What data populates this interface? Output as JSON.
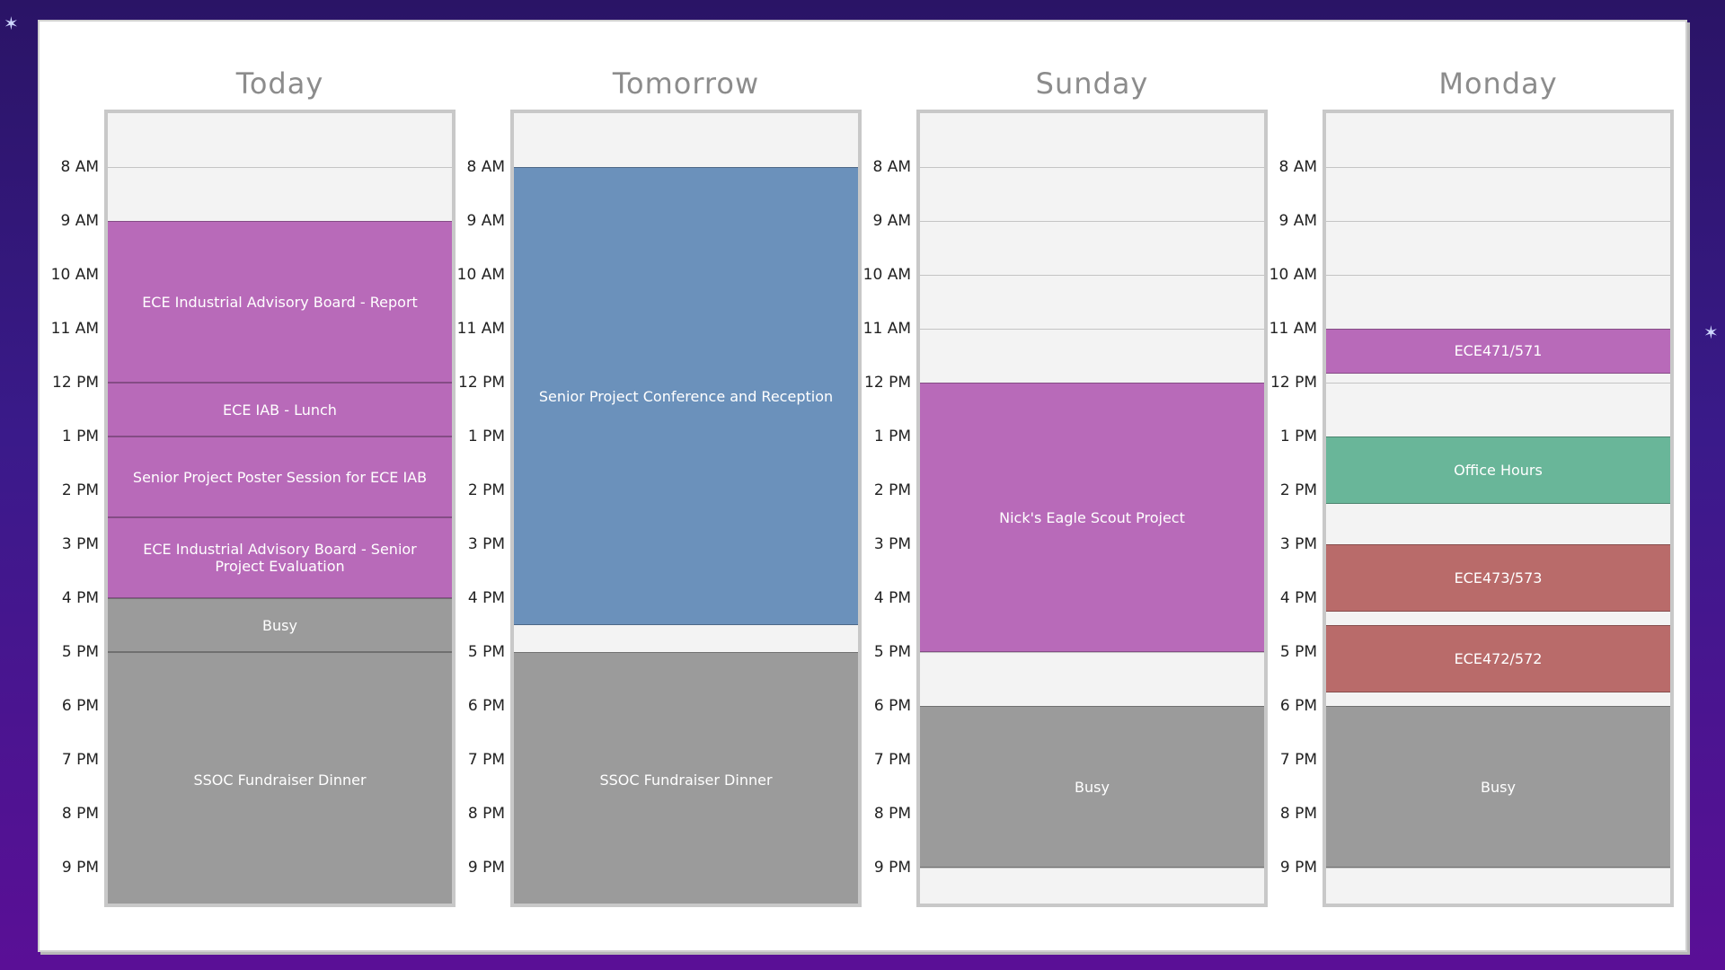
{
  "hours": [
    "8 AM",
    "9 AM",
    "10 AM",
    "11 AM",
    "12 PM",
    "1 PM",
    "2 PM",
    "3 PM",
    "4 PM",
    "5 PM",
    "6 PM",
    "7 PM",
    "8 PM",
    "9 PM"
  ],
  "colors": {
    "purple": "#b86ab9",
    "blue": "#6b91bb",
    "gray": "#9b9b9b",
    "green": "#69b699",
    "red": "#b96b6a"
  },
  "days": [
    {
      "title": "Today",
      "events": [
        {
          "title": "ECE Industrial Advisory Board - Report",
          "start": 9,
          "end": 12,
          "color": "purple"
        },
        {
          "title": "ECE IAB - Lunch",
          "start": 12,
          "end": 13,
          "color": "purple"
        },
        {
          "title": "Senior Project Poster Session for ECE IAB",
          "start": 13,
          "end": 14.5,
          "color": "purple"
        },
        {
          "title": "ECE Industrial Advisory Board - Senior Project Evaluation",
          "start": 14.5,
          "end": 16,
          "color": "purple"
        },
        {
          "title": "Busy",
          "start": 16,
          "end": 17,
          "color": "gray"
        },
        {
          "title": "SSOC Fundraiser Dinner",
          "start": 17,
          "end": 21.75,
          "color": "gray"
        }
      ]
    },
    {
      "title": "Tomorrow",
      "events": [
        {
          "title": "Senior Project Conference and Reception",
          "start": 8,
          "end": 16.5,
          "color": "blue"
        },
        {
          "title": "SSOC Fundraiser Dinner",
          "start": 17,
          "end": 21.75,
          "color": "gray"
        }
      ]
    },
    {
      "title": "Sunday",
      "events": [
        {
          "title": "Nick's Eagle Scout Project",
          "start": 12,
          "end": 17,
          "color": "purple"
        },
        {
          "title": "Busy",
          "start": 18,
          "end": 21,
          "color": "gray"
        }
      ]
    },
    {
      "title": "Monday",
      "events": [
        {
          "title": "ECE471/571",
          "start": 11,
          "end": 11.833,
          "color": "purple"
        },
        {
          "title": "Office Hours",
          "start": 13,
          "end": 14.25,
          "color": "green"
        },
        {
          "title": "ECE473/573",
          "start": 15,
          "end": 16.25,
          "color": "red"
        },
        {
          "title": "ECE472/572",
          "start": 16.5,
          "end": 17.75,
          "color": "red"
        },
        {
          "title": "Busy",
          "start": 18,
          "end": 21,
          "color": "gray"
        }
      ]
    }
  ]
}
